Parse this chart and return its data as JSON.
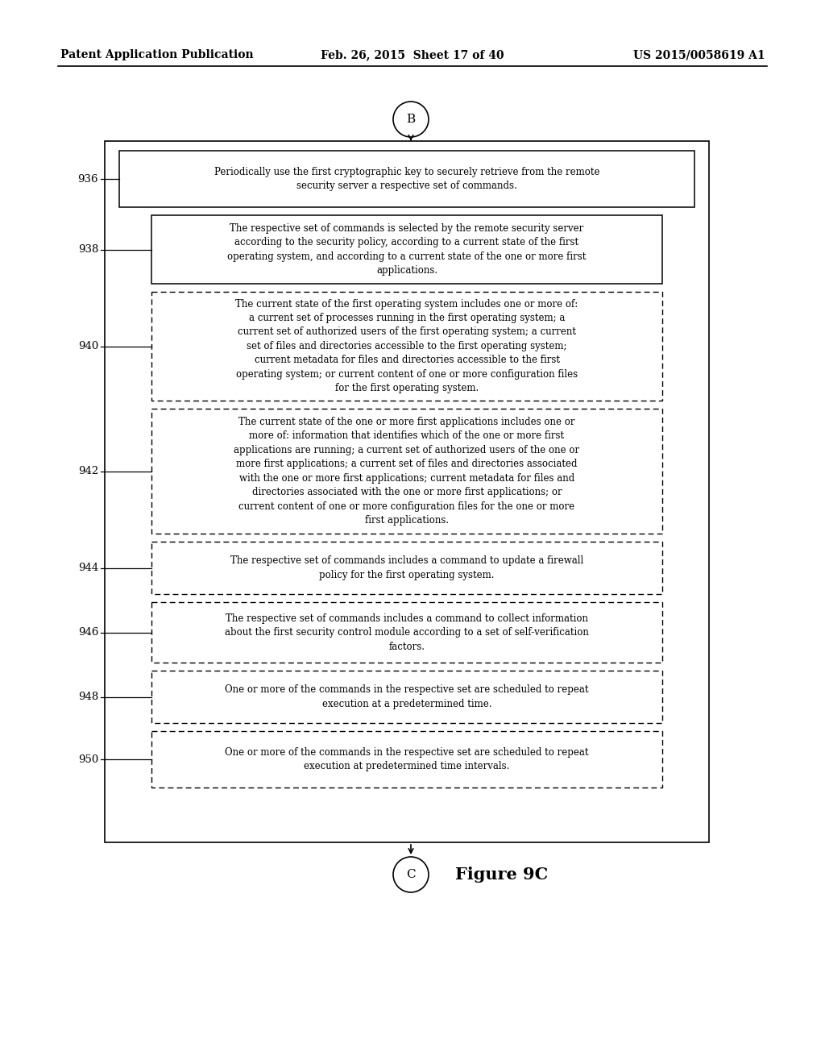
{
  "bg_color": "#ffffff",
  "header_left": "Patent Application Publication",
  "header_mid": "Feb. 26, 2015  Sheet 17 of 40",
  "header_right": "US 2015/0058619 A1",
  "figure_label": "Figure 9C",
  "connector_top": "B",
  "connector_bottom": "C",
  "nodes": [
    {
      "id": "936",
      "text": "Periodically use the first cryptographic key to securely retrieve from the remote\nsecurity server a respective set of commands.",
      "border": "solid",
      "level": 0
    },
    {
      "id": "938",
      "text": "The respective set of commands is selected by the remote security server\naccording to the security policy, according to a current state of the first\noperating system, and according to a current state of the one or more first\napplications.",
      "border": "solid",
      "level": 1
    },
    {
      "id": "940",
      "text": "The current state of the first operating system includes one or more of:\na current set of processes running in the first operating system; a\ncurrent set of authorized users of the first operating system; a current\nset of files and directories accessible to the first operating system;\ncurrent metadata for files and directories accessible to the first\noperating system; or current content of one or more configuration files\nfor the first operating system.",
      "border": "dashed",
      "level": 1
    },
    {
      "id": "942",
      "text": "The current state of the one or more first applications includes one or\nmore of: information that identifies which of the one or more first\napplications are running; a current set of authorized users of the one or\nmore first applications; a current set of files and directories associated\nwith the one or more first applications; current metadata for files and\ndirectories associated with the one or more first applications; or\ncurrent content of one or more configuration files for the one or more\nfirst applications.",
      "border": "dashed",
      "level": 1
    },
    {
      "id": "944",
      "text": "The respective set of commands includes a command to update a firewall\npolicy for the first operating system.",
      "border": "dashed",
      "level": 1
    },
    {
      "id": "946",
      "text": "The respective set of commands includes a command to collect information\nabout the first security control module according to a set of self-verification\nfactors.",
      "border": "dashed",
      "level": 1
    },
    {
      "id": "948",
      "text": "One or more of the commands in the respective set are scheduled to repeat\nexecution at a predetermined time.",
      "border": "dashed",
      "level": 1
    },
    {
      "id": "950",
      "text": "One or more of the commands in the respective set are scheduled to repeat\nexecution at predetermined time intervals.",
      "border": "dashed",
      "level": 1
    }
  ]
}
